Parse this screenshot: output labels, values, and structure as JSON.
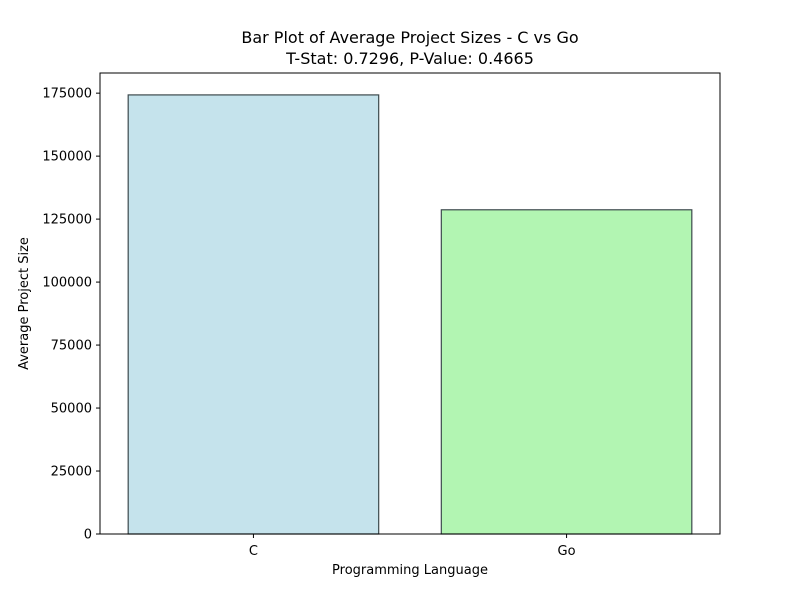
{
  "chart_data": {
    "type": "bar",
    "title": "Bar Plot of Average Project Sizes - C vs Go",
    "subtitle": "T-Stat: 0.7296, P-Value: 0.4665",
    "xlabel": "Programming Language",
    "ylabel": "Average Project Size",
    "categories": [
      "C",
      "Go"
    ],
    "values": [
      174300,
      128700
    ],
    "colors": [
      "#c5e3ec",
      "#b2f5b2"
    ],
    "edge_color": "#3d4a4d",
    "ylim": [
      0,
      183000
    ],
    "yticks": [
      0,
      25000,
      50000,
      75000,
      100000,
      125000,
      150000,
      175000
    ],
    "ytick_labels": [
      "0",
      "25000",
      "50000",
      "75000",
      "100000",
      "125000",
      "150000",
      "175000"
    ],
    "grid": false,
    "legend": "none"
  }
}
